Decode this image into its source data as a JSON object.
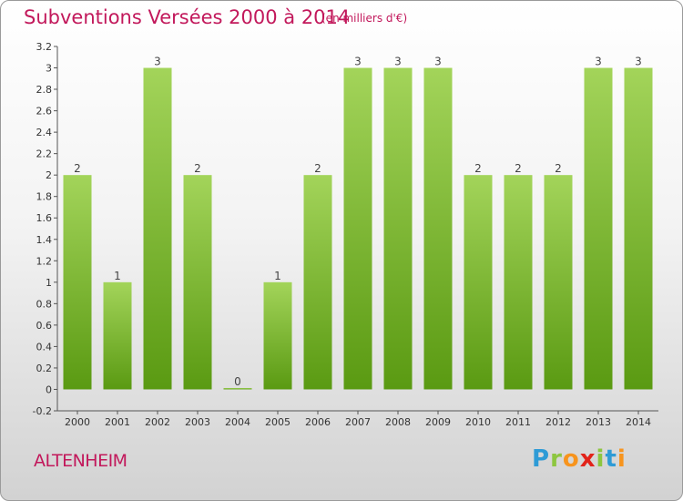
{
  "title": "Subventions Versées 2000 à 2014",
  "subtitle": "(en milliers d'€)",
  "commune": "ALTENHEIM",
  "brand": {
    "letters": [
      "P",
      "r",
      "o",
      "x",
      "i",
      "t",
      "i"
    ],
    "colors": [
      "#2e9bd6",
      "#8dc63f",
      "#f7941d",
      "#e2231a",
      "#8dc63f",
      "#2e9bd6",
      "#f7941d"
    ]
  },
  "colors": {
    "title": "#c2185b",
    "bar_light": "#a3d45a",
    "bar_dark": "#5a9a12",
    "axis_text": "#333333"
  },
  "chart_data": {
    "type": "bar",
    "categories": [
      "2000",
      "2001",
      "2002",
      "2003",
      "2004",
      "2005",
      "2006",
      "2007",
      "2008",
      "2009",
      "2010",
      "2011",
      "2012",
      "2013",
      "2014"
    ],
    "values": [
      2,
      1,
      3,
      2,
      0,
      1,
      2,
      3,
      3,
      3,
      2,
      2,
      2,
      3,
      3
    ],
    "data_labels": [
      "2",
      "1",
      "3",
      "2",
      "0",
      "1",
      "2",
      "3",
      "3",
      "3",
      "2",
      "2",
      "2",
      "3",
      "3"
    ],
    "title": "Subventions Versées 2000 à 2014",
    "ylim": [
      -0.2,
      3.2
    ],
    "y_ticks": [
      "-0.2",
      "0",
      "0.2",
      "0.4",
      "0.6",
      "0.8",
      "1",
      "1.2",
      "1.4",
      "1.6",
      "1.8",
      "2",
      "2.2",
      "2.4",
      "2.6",
      "2.8",
      "3",
      "3.2"
    ],
    "grid": false
  }
}
